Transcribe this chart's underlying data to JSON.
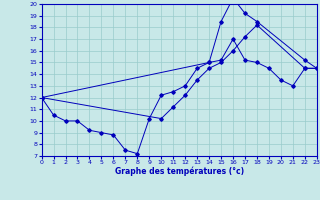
{
  "title": "Graphe des températures (°c)",
  "bg_color": "#c8e8e8",
  "line_color": "#0000bb",
  "grid_color": "#99cccc",
  "xlim": [
    0,
    23
  ],
  "ylim": [
    7,
    20
  ],
  "xticks": [
    0,
    1,
    2,
    3,
    4,
    5,
    6,
    7,
    8,
    9,
    10,
    11,
    12,
    13,
    14,
    15,
    16,
    17,
    18,
    19,
    20,
    21,
    22,
    23
  ],
  "yticks": [
    7,
    8,
    9,
    10,
    11,
    12,
    13,
    14,
    15,
    16,
    17,
    18,
    19,
    20
  ],
  "curve1_x": [
    0,
    1,
    2,
    3,
    4,
    5,
    6,
    7,
    8,
    9,
    10,
    11,
    12,
    13,
    14,
    15,
    16,
    17,
    18,
    19,
    20,
    21,
    22,
    23
  ],
  "curve1_y": [
    12.0,
    10.5,
    10.0,
    10.0,
    9.2,
    9.0,
    8.8,
    7.5,
    7.2,
    10.2,
    12.2,
    12.5,
    13.0,
    14.5,
    15.0,
    15.2,
    17.0,
    15.2,
    15.0,
    14.5,
    13.5,
    13.0,
    14.5,
    14.5
  ],
  "curve2_x": [
    0,
    14,
    15,
    16,
    17,
    18,
    22,
    23
  ],
  "curve2_y": [
    12.0,
    15.0,
    18.5,
    20.5,
    19.2,
    18.5,
    15.2,
    14.5
  ],
  "curve3_x": [
    0,
    10,
    11,
    12,
    13,
    14,
    15,
    16,
    17,
    18,
    22,
    23
  ],
  "curve3_y": [
    12.0,
    10.2,
    11.2,
    12.2,
    13.5,
    14.5,
    15.0,
    16.0,
    17.2,
    18.2,
    14.5,
    14.5
  ]
}
